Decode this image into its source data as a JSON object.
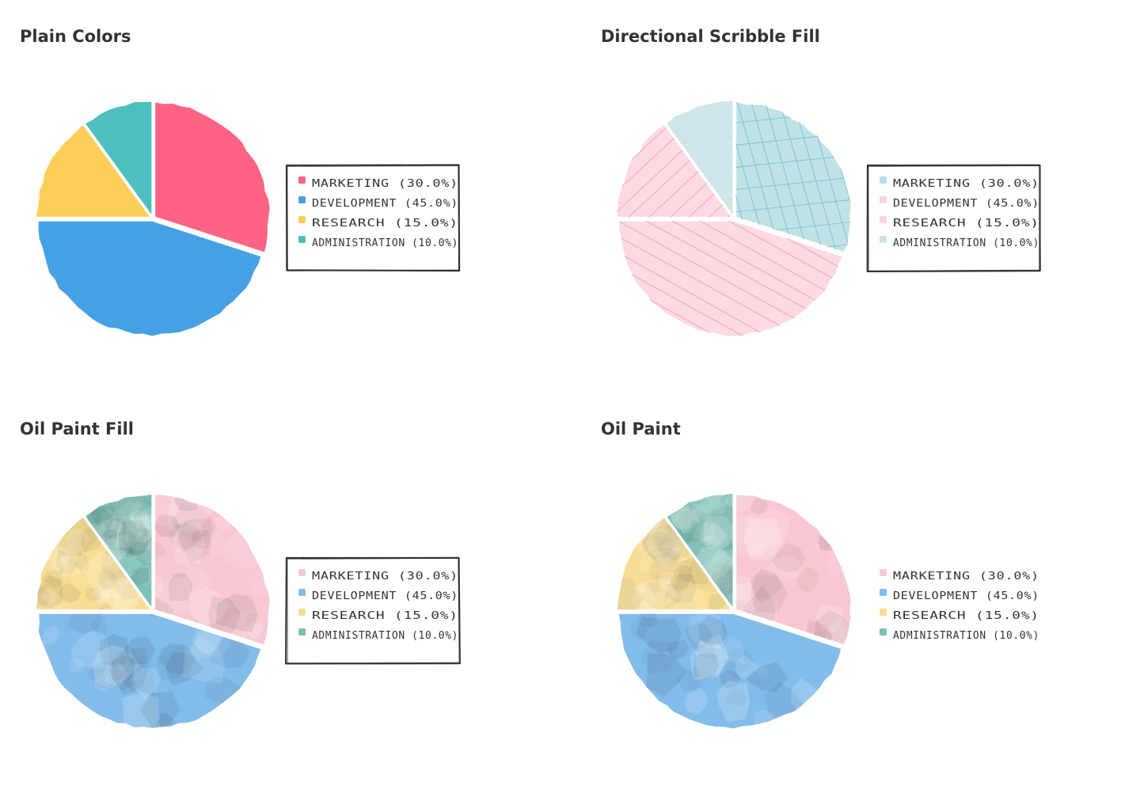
{
  "chart_data": [
    {
      "type": "pie",
      "title": "Plain Colors",
      "categories": [
        "MARKETING",
        "DEVELOPMENT",
        "RESEARCH",
        "ADMINISTRATION"
      ],
      "values": [
        30,
        45,
        15,
        10
      ],
      "labels": [
        "MARKETING (30.0%)",
        "DEVELOPMENT (45.0%)",
        "RESEARCH (15.0%)",
        "ADMINISTRATION (10.0%)"
      ],
      "colors": [
        "#ff6384",
        "#45a0e6",
        "#fdce59",
        "#4dbfbf"
      ],
      "fill_style": "plain",
      "legend_position": "right",
      "legend_border": true
    },
    {
      "type": "pie",
      "title": "Directional Scribble Fill",
      "categories": [
        "MARKETING",
        "DEVELOPMENT",
        "RESEARCH",
        "ADMINISTRATION"
      ],
      "values": [
        30,
        45,
        15,
        10
      ],
      "labels": [
        "MARKETING (30.0%)",
        "DEVELOPMENT (45.0%)",
        "RESEARCH (15.0%)",
        "ADMINISTRATION (10.0%)"
      ],
      "colors": [
        "#b5dde2",
        "#fbd3dc",
        "#fbd3dc",
        "#c8e1e6"
      ],
      "hatch_colors": [
        "#7cc3cb",
        "#f4a3b6",
        "#f4a3b6",
        "#c8e1e6"
      ],
      "fill_style": "scribble",
      "legend_position": "right",
      "legend_border": true
    },
    {
      "type": "pie",
      "title": "Oil Paint Fill",
      "categories": [
        "MARKETING",
        "DEVELOPMENT",
        "RESEARCH",
        "ADMINISTRATION"
      ],
      "values": [
        30,
        45,
        15,
        10
      ],
      "labels": [
        "MARKETING (30.0%)",
        "DEVELOPMENT (45.0%)",
        "RESEARCH (15.0%)",
        "ADMINISTRATION (10.0%)"
      ],
      "colors": [
        "#f9c7d1",
        "#82bceb",
        "#f8de94",
        "#7cbfb5"
      ],
      "fill_style": "oil",
      "legend_position": "right",
      "legend_border": true
    },
    {
      "type": "pie",
      "title": "Oil Paint",
      "categories": [
        "MARKETING",
        "DEVELOPMENT",
        "RESEARCH",
        "ADMINISTRATION"
      ],
      "values": [
        30,
        45,
        15,
        10
      ],
      "labels": [
        "MARKETING (30.0%)",
        "DEVELOPMENT (45.0%)",
        "RESEARCH (15.0%)",
        "ADMINISTRATION (10.0%)"
      ],
      "colors": [
        "#f9c7d1",
        "#82bceb",
        "#f8de94",
        "#7cbfb5"
      ],
      "fill_style": "oil",
      "legend_position": "right",
      "legend_border": false
    }
  ]
}
